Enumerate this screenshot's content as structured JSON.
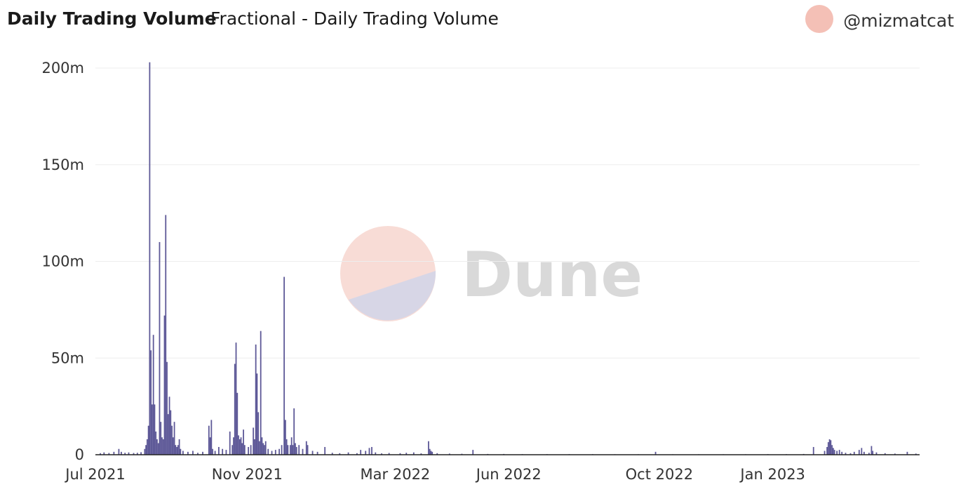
{
  "header": {
    "title": "Daily Trading Volume",
    "subtitle": "Fractional - Daily Trading Volume",
    "author": "@mizmatcat"
  },
  "watermark": {
    "text": "Dune"
  },
  "colors": {
    "bar": "#5d5897",
    "grid": "#eeeeee",
    "axis": "#222222",
    "avatar": "#f4c0b6"
  },
  "chart_data": {
    "type": "bar",
    "title": "Daily Trading Volume",
    "xlabel": "",
    "ylabel": "",
    "ylim": [
      0,
      200000000
    ],
    "xlim": [
      "2021-07-01",
      "2023-04-30"
    ],
    "yticks": [
      {
        "value": 0,
        "label": "0"
      },
      {
        "value": 50000000,
        "label": "50m"
      },
      {
        "value": 100000000,
        "label": "100m"
      },
      {
        "value": 150000000,
        "label": "150m"
      },
      {
        "value": 200000000,
        "label": "200m"
      }
    ],
    "xticks": [
      {
        "date": "2021-07-01",
        "label": "Jul 2021"
      },
      {
        "date": "2021-11-01",
        "label": "Nov 2021"
      },
      {
        "date": "2022-03-01",
        "label": "Mar 2022"
      },
      {
        "date": "2022-06-01",
        "label": "Jun 2022"
      },
      {
        "date": "2022-10-01",
        "label": "Oct 2022"
      },
      {
        "date": "2023-01-01",
        "label": "Jan 2023"
      }
    ],
    "grid": true,
    "legend": "none",
    "series": [
      {
        "points": [
          [
            "2021-07-05",
            800000
          ],
          [
            "2021-07-08",
            1200000
          ],
          [
            "2021-07-12",
            900000
          ],
          [
            "2021-07-16",
            1500000
          ],
          [
            "2021-07-20",
            3000000
          ],
          [
            "2021-07-22",
            1500000
          ],
          [
            "2021-07-25",
            1000000
          ],
          [
            "2021-07-28",
            1200000
          ],
          [
            "2021-08-01",
            900000
          ],
          [
            "2021-08-04",
            1000000
          ],
          [
            "2021-08-07",
            1300000
          ],
          [
            "2021-08-10",
            3000000
          ],
          [
            "2021-08-11",
            5000000
          ],
          [
            "2021-08-12",
            8000000
          ],
          [
            "2021-08-13",
            15000000
          ],
          [
            "2021-08-14",
            203000000
          ],
          [
            "2021-08-15",
            54000000
          ],
          [
            "2021-08-16",
            26000000
          ],
          [
            "2021-08-17",
            62000000
          ],
          [
            "2021-08-18",
            26000000
          ],
          [
            "2021-08-19",
            12000000
          ],
          [
            "2021-08-20",
            8000000
          ],
          [
            "2021-08-21",
            6000000
          ],
          [
            "2021-08-22",
            110000000
          ],
          [
            "2021-08-23",
            17000000
          ],
          [
            "2021-08-24",
            9000000
          ],
          [
            "2021-08-25",
            8000000
          ],
          [
            "2021-08-26",
            72000000
          ],
          [
            "2021-08-27",
            124000000
          ],
          [
            "2021-08-28",
            48000000
          ],
          [
            "2021-08-29",
            21000000
          ],
          [
            "2021-08-30",
            30000000
          ],
          [
            "2021-08-31",
            23000000
          ],
          [
            "2021-09-01",
            15000000
          ],
          [
            "2021-09-02",
            9000000
          ],
          [
            "2021-09-03",
            17000000
          ],
          [
            "2021-09-04",
            5000000
          ],
          [
            "2021-09-05",
            4000000
          ],
          [
            "2021-09-06",
            5000000
          ],
          [
            "2021-09-07",
            8000000
          ],
          [
            "2021-09-08",
            3000000
          ],
          [
            "2021-09-10",
            2000000
          ],
          [
            "2021-09-14",
            1500000
          ],
          [
            "2021-09-18",
            2000000
          ],
          [
            "2021-09-22",
            1000000
          ],
          [
            "2021-09-26",
            1500000
          ],
          [
            "2021-10-01",
            15000000
          ],
          [
            "2021-10-02",
            9000000
          ],
          [
            "2021-10-03",
            18000000
          ],
          [
            "2021-10-04",
            3000000
          ],
          [
            "2021-10-06",
            2000000
          ],
          [
            "2021-10-09",
            4000000
          ],
          [
            "2021-10-12",
            3000000
          ],
          [
            "2021-10-15",
            2500000
          ],
          [
            "2021-10-18",
            12000000
          ],
          [
            "2021-10-20",
            5000000
          ],
          [
            "2021-10-21",
            9000000
          ],
          [
            "2021-10-22",
            47000000
          ],
          [
            "2021-10-23",
            58000000
          ],
          [
            "2021-10-24",
            32000000
          ],
          [
            "2021-10-25",
            10000000
          ],
          [
            "2021-10-26",
            8000000
          ],
          [
            "2021-10-27",
            9000000
          ],
          [
            "2021-10-28",
            6000000
          ],
          [
            "2021-10-29",
            13000000
          ],
          [
            "2021-10-30",
            5000000
          ],
          [
            "2021-11-02",
            4000000
          ],
          [
            "2021-11-04",
            5000000
          ],
          [
            "2021-11-06",
            14000000
          ],
          [
            "2021-11-07",
            8000000
          ],
          [
            "2021-11-08",
            57000000
          ],
          [
            "2021-11-09",
            42000000
          ],
          [
            "2021-11-10",
            22000000
          ],
          [
            "2021-11-11",
            7000000
          ],
          [
            "2021-11-12",
            64000000
          ],
          [
            "2021-11-13",
            9000000
          ],
          [
            "2021-11-14",
            6000000
          ],
          [
            "2021-11-15",
            5000000
          ],
          [
            "2021-11-16",
            7000000
          ],
          [
            "2021-11-18",
            3000000
          ],
          [
            "2021-11-21",
            2000000
          ],
          [
            "2021-11-24",
            2500000
          ],
          [
            "2021-11-27",
            3000000
          ],
          [
            "2021-11-29",
            5000000
          ],
          [
            "2021-12-01",
            92000000
          ],
          [
            "2021-12-02",
            18000000
          ],
          [
            "2021-12-03",
            8000000
          ],
          [
            "2021-12-04",
            5000000
          ],
          [
            "2021-12-06",
            5000000
          ],
          [
            "2021-12-07",
            9000000
          ],
          [
            "2021-12-08",
            5000000
          ],
          [
            "2021-12-09",
            24000000
          ],
          [
            "2021-12-10",
            6000000
          ],
          [
            "2021-12-11",
            4000000
          ],
          [
            "2021-12-13",
            5000000
          ],
          [
            "2021-12-16",
            3000000
          ],
          [
            "2021-12-19",
            7000000
          ],
          [
            "2021-12-20",
            5000000
          ],
          [
            "2021-12-24",
            2000000
          ],
          [
            "2021-12-28",
            1500000
          ],
          [
            "2022-01-03",
            4000000
          ],
          [
            "2022-01-09",
            1000000
          ],
          [
            "2022-01-15",
            800000
          ],
          [
            "2022-01-22",
            1200000
          ],
          [
            "2022-01-29",
            800000
          ],
          [
            "2022-02-01",
            2500000
          ],
          [
            "2022-02-05",
            2000000
          ],
          [
            "2022-02-08",
            3500000
          ],
          [
            "2022-02-10",
            4000000
          ],
          [
            "2022-02-13",
            1200000
          ],
          [
            "2022-02-18",
            700000
          ],
          [
            "2022-02-24",
            900000
          ],
          [
            "2022-03-05",
            800000
          ],
          [
            "2022-03-10",
            1000000
          ],
          [
            "2022-03-16",
            1200000
          ],
          [
            "2022-03-22",
            700000
          ],
          [
            "2022-03-28",
            7000000
          ],
          [
            "2022-03-29",
            3000000
          ],
          [
            "2022-03-30",
            2000000
          ],
          [
            "2022-03-31",
            1500000
          ],
          [
            "2022-04-04",
            800000
          ],
          [
            "2022-04-14",
            600000
          ],
          [
            "2022-04-24",
            500000
          ],
          [
            "2022-05-03",
            2500000
          ],
          [
            "2022-05-15",
            400000
          ],
          [
            "2022-05-28",
            400000
          ],
          [
            "2022-06-12",
            300000
          ],
          [
            "2022-07-02",
            300000
          ],
          [
            "2022-07-20",
            300000
          ],
          [
            "2022-08-08",
            300000
          ],
          [
            "2022-08-26",
            250000
          ],
          [
            "2022-09-14",
            250000
          ],
          [
            "2022-09-28",
            1500000
          ],
          [
            "2022-10-12",
            250000
          ],
          [
            "2022-11-02",
            250000
          ],
          [
            "2022-11-22",
            250000
          ],
          [
            "2022-12-10",
            250000
          ],
          [
            "2022-12-28",
            300000
          ],
          [
            "2023-01-12",
            300000
          ],
          [
            "2023-01-26",
            400000
          ],
          [
            "2023-02-03",
            4000000
          ],
          [
            "2023-02-12",
            2000000
          ],
          [
            "2023-02-14",
            4000000
          ],
          [
            "2023-02-15",
            6500000
          ],
          [
            "2023-02-16",
            8000000
          ],
          [
            "2023-02-17",
            7500000
          ],
          [
            "2023-02-18",
            5000000
          ],
          [
            "2023-02-19",
            3500000
          ],
          [
            "2023-02-20",
            2500000
          ],
          [
            "2023-02-22",
            2000000
          ],
          [
            "2023-02-24",
            2500000
          ],
          [
            "2023-02-26",
            1500000
          ],
          [
            "2023-03-01",
            1000000
          ],
          [
            "2023-03-05",
            800000
          ],
          [
            "2023-03-08",
            1500000
          ],
          [
            "2023-03-12",
            2500000
          ],
          [
            "2023-03-14",
            3500000
          ],
          [
            "2023-03-16",
            1500000
          ],
          [
            "2023-03-20",
            1000000
          ],
          [
            "2023-03-22",
            4500000
          ],
          [
            "2023-03-23",
            2000000
          ],
          [
            "2023-03-26",
            1200000
          ],
          [
            "2023-04-02",
            800000
          ],
          [
            "2023-04-10",
            600000
          ],
          [
            "2023-04-20",
            1500000
          ],
          [
            "2023-04-27",
            600000
          ]
        ]
      }
    ]
  }
}
